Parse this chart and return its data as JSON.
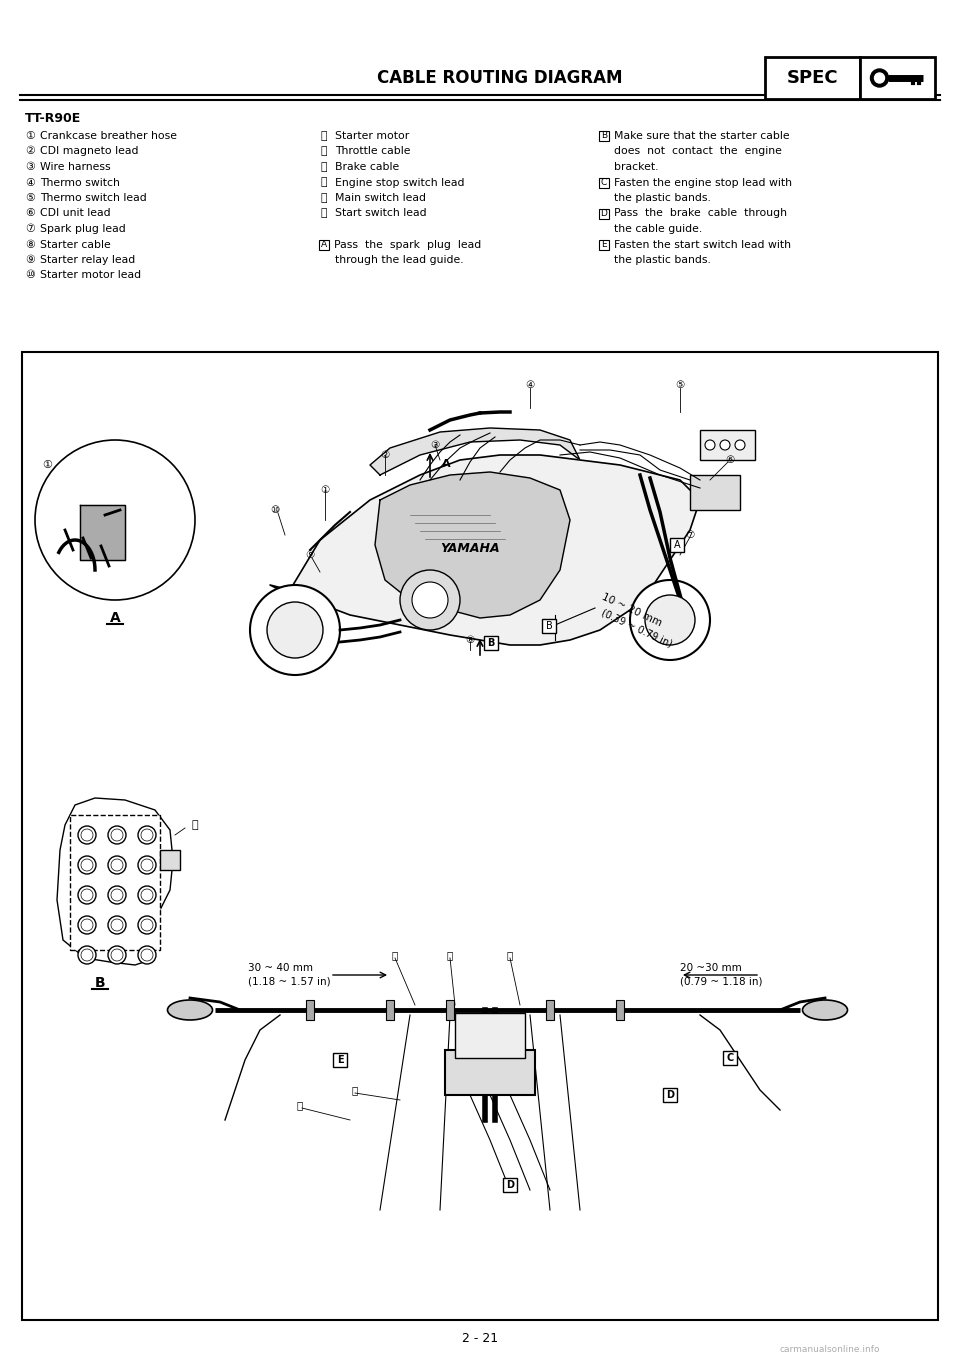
{
  "page_title": "CABLE ROUTING DIAGRAM",
  "spec_label": "SPEC",
  "model": "TT-R90E",
  "bg_color": "#ffffff",
  "page_number": "2 - 21",
  "watermark": "carmanualsonline.info",
  "col1_items": [
    [
      "①",
      " Crankcase breather hose"
    ],
    [
      "②",
      " CDI magneto lead"
    ],
    [
      "③",
      " Wire harness"
    ],
    [
      "④",
      " Thermo switch"
    ],
    [
      "⑤",
      " Thermo switch lead"
    ],
    [
      "⑥",
      " CDI unit lead"
    ],
    [
      "⑦",
      " Spark plug lead"
    ],
    [
      "⑧",
      " Starter cable"
    ],
    [
      "⑨",
      " Starter relay lead"
    ],
    [
      "⑩",
      " Starter motor lead"
    ]
  ],
  "col2_items": [
    [
      "⑪",
      " Starter motor"
    ],
    [
      "⑫",
      " Throttle cable"
    ],
    [
      "⑬",
      " Brake cable"
    ],
    [
      "⑭",
      " Engine stop switch lead"
    ],
    [
      "⑮",
      " Main switch lead"
    ],
    [
      "⑯",
      " Start switch lead"
    ],
    [
      "",
      ""
    ],
    [
      "A",
      " Pass  the  spark  plug  lead"
    ],
    [
      "",
      "    through the lead guide."
    ]
  ],
  "col3_items": [
    [
      "B",
      " Make sure that the starter cable"
    ],
    [
      "",
      "   does  not  contact  the  engine"
    ],
    [
      "",
      "   bracket."
    ],
    [
      "C",
      " Fasten the engine stop lead with"
    ],
    [
      "",
      "   the plastic bands."
    ],
    [
      "D",
      " Pass  the  brake  cable  through"
    ],
    [
      "",
      "   the cable guide."
    ],
    [
      "E",
      " Fasten the start switch lead with"
    ],
    [
      "",
      "   the plastic bands."
    ]
  ],
  "text_color": "#000000",
  "font_size_title": 12,
  "font_size_items": 7.8,
  "font_size_model": 9,
  "font_size_page": 9
}
